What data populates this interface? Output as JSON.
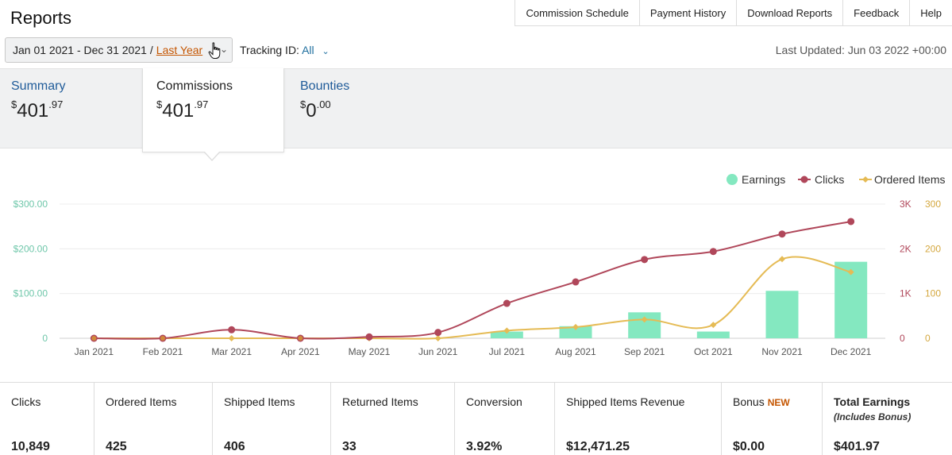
{
  "page": {
    "title": "Reports"
  },
  "topnav": [
    "Commission Schedule",
    "Payment History",
    "Download Reports",
    "Feedback",
    "Help"
  ],
  "date_range": {
    "range": "Jan 01 2021 - Dec 31 2021",
    "separator": "/",
    "preset": "Last Year"
  },
  "tracking": {
    "label": "Tracking ID:",
    "value": "All"
  },
  "last_updated": "Last Updated: Jun 03 2022 +00:00",
  "tabs": {
    "summary": {
      "label": "Summary",
      "currency": "$",
      "whole": "401",
      "cents": ".97"
    },
    "commissions": {
      "label": "Commissions",
      "currency": "$",
      "whole": "401",
      "cents": ".97"
    },
    "bounties": {
      "label": "Bounties",
      "currency": "$",
      "whole": "0",
      "cents": ".00"
    }
  },
  "chart_data": {
    "type": "bar",
    "categories": [
      "Jan 2021",
      "Feb 2021",
      "Mar 2021",
      "Apr 2021",
      "May 2021",
      "Jun 2021",
      "Jul 2021",
      "Aug 2021",
      "Sep 2021",
      "Oct 2021",
      "Nov 2021",
      "Dec 2021"
    ],
    "legend": {
      "placement": "top-right",
      "entries": [
        "Earnings",
        "Clicks",
        "Ordered Items"
      ]
    },
    "series": [
      {
        "name": "Earnings",
        "type": "bar",
        "axis": "left",
        "color": "#84e8c0",
        "values": [
          0,
          0,
          0,
          0,
          0,
          0,
          15,
          27,
          58,
          15,
          106,
          171
        ]
      },
      {
        "name": "Clicks",
        "type": "line",
        "axis": "right-1",
        "color": "#b0475a",
        "values": [
          0,
          0,
          190,
          0,
          30,
          130,
          780,
          1260,
          1760,
          1940,
          2330,
          2610
        ]
      },
      {
        "name": "Ordered Items",
        "type": "line",
        "axis": "right-2",
        "color": "#e5bb55",
        "values": [
          0,
          0,
          0,
          0,
          0,
          0,
          17,
          25,
          42,
          30,
          177,
          148
        ]
      }
    ],
    "y_left": {
      "ticks": [
        "$300.00",
        "$200.00",
        "$100.00",
        "0"
      ],
      "range": [
        0,
        300
      ],
      "color": "#6fc7aa"
    },
    "y_right_1": {
      "ticks": [
        "3K",
        "2K",
        "1K",
        "0"
      ],
      "range": [
        0,
        3000
      ],
      "color": "#b0475a"
    },
    "y_right_2": {
      "ticks": [
        "300",
        "200",
        "100",
        "0"
      ],
      "range": [
        0,
        300
      ],
      "color": "#d4a73e"
    },
    "grid": true
  },
  "metrics": [
    {
      "label": "Clicks",
      "value": "10,849"
    },
    {
      "label": "Ordered Items",
      "value": "425"
    },
    {
      "label": "Shipped Items",
      "value": "406"
    },
    {
      "label": "Returned Items",
      "value": "33"
    },
    {
      "label": "Conversion",
      "value": "3.92%"
    },
    {
      "label": "Shipped Items Revenue",
      "value": "$12,471.25"
    },
    {
      "label": "Bonus",
      "badge": "NEW",
      "value": "$0.00"
    },
    {
      "label": "Total Earnings",
      "sub": "(Includes Bonus)",
      "value": "$401.97"
    }
  ]
}
